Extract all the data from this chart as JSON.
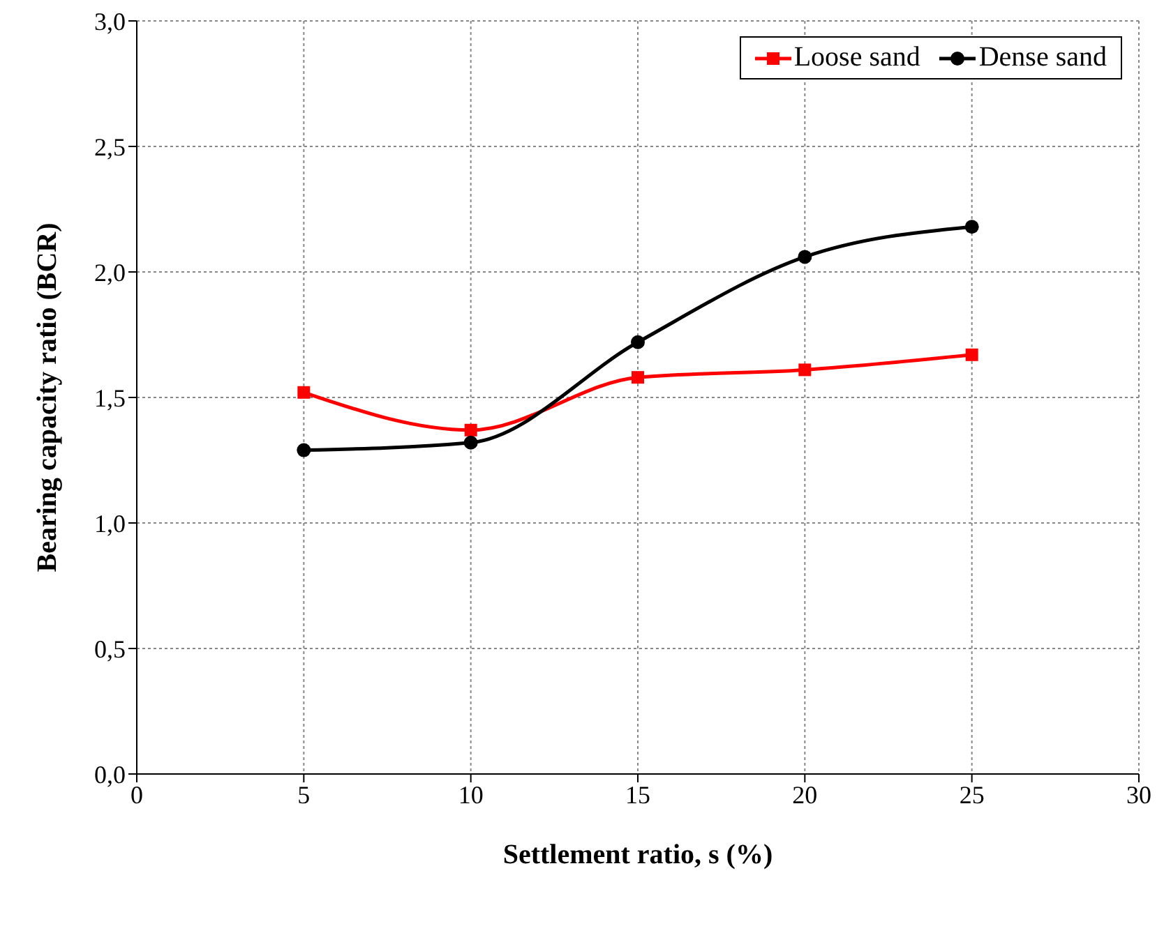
{
  "chart_data": {
    "type": "line",
    "xlabel": "Settlement ratio, s (%)",
    "ylabel": "Bearing capacity ratio (BCR)",
    "x": [
      5,
      10,
      15,
      20,
      25
    ],
    "series": [
      {
        "name": "Loose sand",
        "color": "#ff0000",
        "marker": "square",
        "values": [
          1.52,
          1.37,
          1.58,
          1.61,
          1.67
        ]
      },
      {
        "name": "Dense sand",
        "color": "#000000",
        "marker": "circle",
        "values": [
          1.29,
          1.32,
          1.72,
          2.06,
          2.18
        ]
      }
    ],
    "xlim": [
      0,
      30
    ],
    "xticks": [
      0,
      5,
      10,
      15,
      20,
      25,
      30
    ],
    "ylim": [
      0,
      3
    ],
    "yticks": [
      {
        "value": 0,
        "label": "0,0"
      },
      {
        "value": 0.5,
        "label": "0,5"
      },
      {
        "value": 1,
        "label": "1,0"
      },
      {
        "value": 1.5,
        "label": "1,5"
      },
      {
        "value": 2,
        "label": "2,0"
      },
      {
        "value": 2.5,
        "label": "2,5"
      },
      {
        "value": 3,
        "label": "3,0"
      }
    ],
    "grid": true,
    "legend": "top right",
    "line_style": "solid"
  }
}
